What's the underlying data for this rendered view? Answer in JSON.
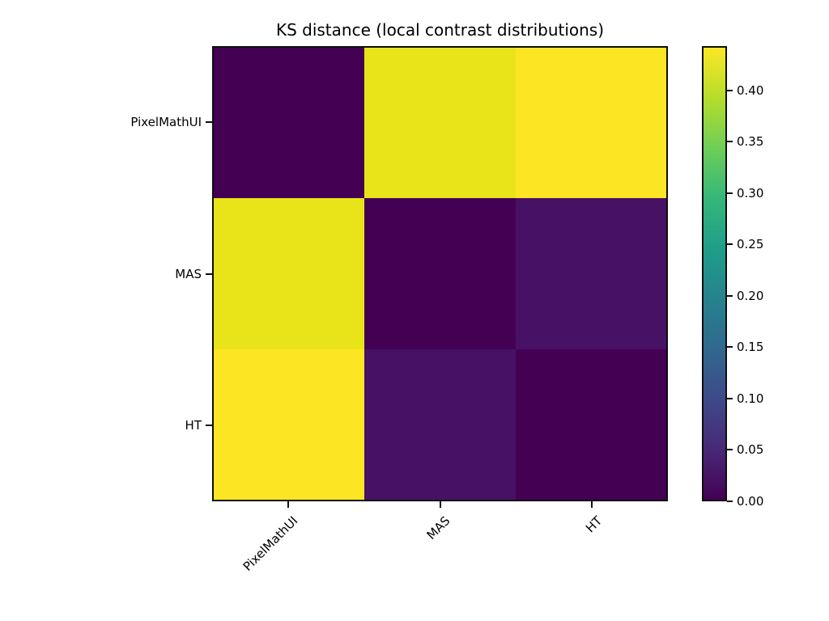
{
  "figure": {
    "background_color": "#ffffff"
  },
  "chart_data": {
    "type": "heatmap",
    "title": "KS distance (local contrast distributions)",
    "categories": [
      "PixelMathUI",
      "MAS",
      "HT"
    ],
    "x_tick_labels": [
      "PixelMathUI",
      "MAS",
      "HT"
    ],
    "y_tick_labels": [
      "PixelMathUI",
      "MAS",
      "HT"
    ],
    "matrix": [
      [
        0.0,
        0.43,
        0.44
      ],
      [
        0.43,
        0.0,
        0.04
      ],
      [
        0.44,
        0.04,
        0.0
      ]
    ],
    "cell_colors": [
      [
        "#440154",
        "#e9e41a",
        "#fce522"
      ],
      [
        "#e9e41a",
        "#440154",
        "#471265"
      ],
      [
        "#fce522",
        "#471265",
        "#440154"
      ]
    ],
    "colormap": "viridis",
    "vmin": 0.0,
    "vmax": 0.443,
    "x_tick_rotation_deg": 45,
    "grid": false,
    "legend_position": "colorbar-right",
    "colorbar": {
      "tick_values": [
        0.0,
        0.05,
        0.1,
        0.15,
        0.2,
        0.25,
        0.3,
        0.35,
        0.4
      ],
      "tick_labels": [
        "0.00",
        "0.05",
        "0.10",
        "0.15",
        "0.20",
        "0.25",
        "0.30",
        "0.35",
        "0.40"
      ],
      "gradient_stops": [
        "#440154",
        "#482878",
        "#3e4a89",
        "#31688e",
        "#26828e",
        "#1f9e89",
        "#35b779",
        "#6ece58",
        "#b5de2b",
        "#fde725"
      ]
    },
    "dark_cell_color": "#440154",
    "max_cell_color": "#fce522"
  }
}
